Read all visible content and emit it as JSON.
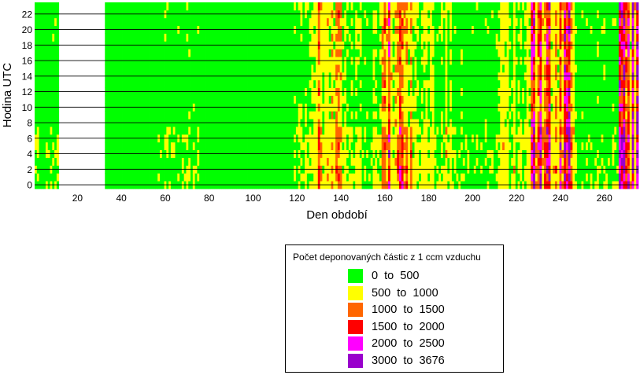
{
  "chart_data": {
    "type": "heatmap",
    "title": "",
    "xlabel": "Den období",
    "ylabel": "Hodina UTC",
    "xlim": [
      1,
      275
    ],
    "ylim": [
      0,
      23
    ],
    "x_ticks": [
      20,
      40,
      60,
      80,
      100,
      120,
      140,
      160,
      180,
      200,
      220,
      240,
      260
    ],
    "y_ticks": [
      0,
      2,
      4,
      6,
      8,
      10,
      12,
      14,
      16,
      18,
      20,
      22
    ],
    "grid": "horizontal lines at each y tick",
    "missing_days": [
      12,
      32
    ],
    "legend": {
      "title": "Počet deponovaných částic z 1 ccm vzduchu",
      "placement": "below-right",
      "entries": [
        {
          "label": "0  to  500",
          "color": "#00ff00"
        },
        {
          "label": "500  to  1000",
          "color": "#ffff00"
        },
        {
          "label": "1000  to  1500",
          "color": "#ff6600"
        },
        {
          "label": "1500  to  2000",
          "color": "#ff0000"
        },
        {
          "label": "2000  to  2500",
          "color": "#ff00ff"
        },
        {
          "label": "3000  to  3676",
          "color": "#9900cc"
        }
      ]
    },
    "activity_profile": [
      {
        "from": 1,
        "to": 11,
        "level": 0.2
      },
      {
        "from": 33,
        "to": 55,
        "level": 0.05
      },
      {
        "from": 56,
        "to": 75,
        "level": 0.22
      },
      {
        "from": 76,
        "to": 118,
        "level": 0.12
      },
      {
        "from": 119,
        "to": 127,
        "level": 0.35
      },
      {
        "from": 128,
        "to": 140,
        "level": 0.7
      },
      {
        "from": 141,
        "to": 158,
        "level": 0.35
      },
      {
        "from": 159,
        "to": 172,
        "level": 0.75
      },
      {
        "from": 173,
        "to": 190,
        "level": 0.45
      },
      {
        "from": 191,
        "to": 210,
        "level": 0.25
      },
      {
        "from": 211,
        "to": 226,
        "level": 0.45
      },
      {
        "from": 227,
        "to": 246,
        "level": 0.85
      },
      {
        "from": 247,
        "to": 266,
        "level": 0.25
      },
      {
        "from": 267,
        "to": 275,
        "level": 0.9
      }
    ]
  }
}
